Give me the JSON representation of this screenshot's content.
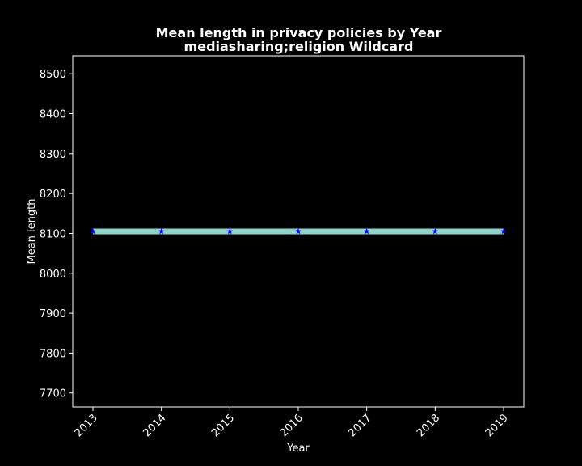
{
  "chart_data": {
    "type": "line",
    "title_line1": "Mean length in privacy policies by Year",
    "title_line2": "mediasharing;religion Wildcard",
    "xlabel": "Year",
    "ylabel": "Mean length",
    "x": [
      "2013",
      "2014",
      "2015",
      "2016",
      "2017",
      "2018",
      "2019"
    ],
    "series": [
      {
        "values": [
          8105,
          8105,
          8105,
          8105,
          8105,
          8105,
          8105
        ]
      }
    ],
    "ylim": [
      7665,
      8545
    ],
    "yticks": [
      7700,
      7800,
      7900,
      8000,
      8100,
      8200,
      8300,
      8400,
      8500
    ],
    "grid": false,
    "colors": {
      "background": "#000000",
      "band": "#8dd3c7",
      "marker": "#0000ff",
      "text": "#ffffff"
    }
  }
}
